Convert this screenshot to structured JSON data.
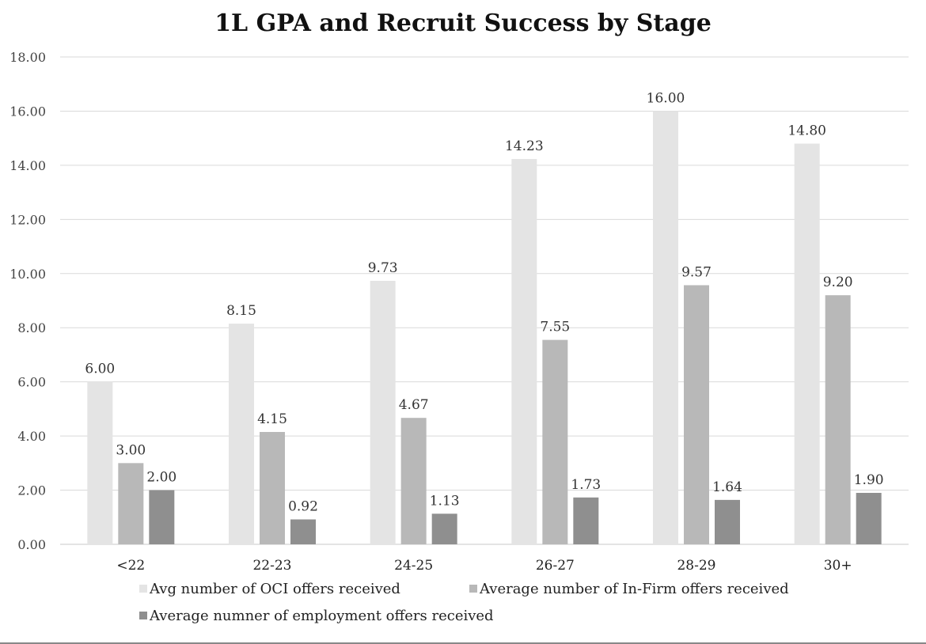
{
  "chart_data": {
    "type": "bar",
    "title": "1L GPA and Recruit Success by Stage",
    "categories": [
      "<22",
      "22-23",
      "24-25",
      "26-27",
      "28-29",
      "30+"
    ],
    "series": [
      {
        "name": "Avg number of OCI offers received",
        "color": "#e4e4e4",
        "values": [
          6.0,
          8.15,
          9.73,
          14.23,
          16.0,
          14.8
        ],
        "labels": [
          "6.00",
          "8.15",
          "9.73",
          "14.23",
          "16.00",
          "14.80"
        ]
      },
      {
        "name": "Average number of In-Firm offers received",
        "color": "#b8b8b8",
        "values": [
          3.0,
          4.15,
          4.67,
          7.55,
          9.57,
          9.2
        ],
        "labels": [
          "3.00",
          "4.15",
          "4.67",
          "7.55",
          "9.57",
          "9.20"
        ]
      },
      {
        "name": "Average numner of employment offers received",
        "color": "#8f8f8f",
        "values": [
          2.0,
          0.92,
          1.13,
          1.73,
          1.64,
          1.9
        ],
        "labels": [
          "2.00",
          "0.92",
          "1.13",
          "1.73",
          "1.64",
          "1.90"
        ]
      }
    ],
    "ylim": [
      0,
      18
    ],
    "yticks": [
      "0.00",
      "2.00",
      "4.00",
      "6.00",
      "8.00",
      "10.00",
      "12.00",
      "14.00",
      "16.00",
      "18.00"
    ],
    "ytick_values": [
      0,
      2,
      4,
      6,
      8,
      10,
      12,
      14,
      16,
      18
    ],
    "grid": true,
    "legend_position": "bottom"
  }
}
